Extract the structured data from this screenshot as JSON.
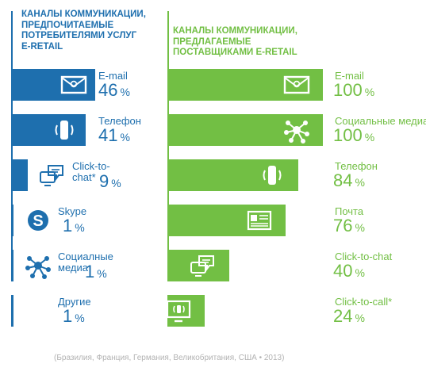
{
  "theme": {
    "left_color": "#1e6fae",
    "right_color": "#72bf44",
    "icon_fg": "#ffffff",
    "footnote_color": "#b3b3b3"
  },
  "chart_data": [
    {
      "type": "bar",
      "title": "КАНАЛЫ КОММУНИКАЦИИ, ПРЕДПОЧИТАЕМЫЕ ПОТРЕБИТЕЛЯМИ УСЛУГ E-RETAIL",
      "title_lines": [
        "КАНАЛЫ КОММУНИКАЦИИ,",
        "ПРЕДПОЧИТАЕМЫЕ",
        "ПОТРЕБИТЕЛЯМИ УСЛУГ",
        "E-RETAIL"
      ],
      "orientation": "horizontal",
      "color": "#1e6fae",
      "unit": "%",
      "categories": [
        "E-mail",
        "Телефон",
        "Click-to-chat*",
        "Skype",
        "Социалные медиа",
        "Другие"
      ],
      "values": [
        46,
        41,
        9,
        1,
        1,
        1
      ],
      "xlim": [
        0,
        46
      ],
      "items": [
        {
          "label_lines": [
            "E-mail"
          ],
          "value": 46,
          "icon": "envelope-icon"
        },
        {
          "label_lines": [
            "Телефон"
          ],
          "value": 41,
          "icon": "phone-icon"
        },
        {
          "label_lines": [
            "Click-to-",
            "chat*"
          ],
          "value": 9,
          "icon": "chat-icon"
        },
        {
          "label_lines": [
            "Skype"
          ],
          "value": 1,
          "icon": "skype-icon"
        },
        {
          "label_lines": [
            "Социалные",
            "медиа"
          ],
          "value": 1,
          "icon": "social-network-icon"
        },
        {
          "label_lines": [
            "Другие"
          ],
          "value": 1,
          "icon": ""
        }
      ]
    },
    {
      "type": "bar",
      "title": "КАНАЛЫ КОММУНИКАЦИИ, ПРЕДЛАГАЕМЫЕ ПОСТАВЩИКАМИ E-RETAIL",
      "title_lines": [
        "КАНАЛЫ КОММУНИКАЦИИ,",
        "ПРЕДЛАГАЕМЫЕ",
        "ПОСТАВЩИКАМИ E-RETAIL"
      ],
      "orientation": "horizontal",
      "color": "#72bf44",
      "unit": "%",
      "categories": [
        "E-mail",
        "Социальные медиа",
        "Телефон",
        "Почта",
        "Click-to-chat",
        "Click-to-call*"
      ],
      "values": [
        100,
        100,
        84,
        76,
        40,
        24
      ],
      "xlim": [
        0,
        100
      ],
      "items": [
        {
          "label_lines": [
            "E-mail"
          ],
          "value": 100,
          "icon": "envelope-icon"
        },
        {
          "label_lines": [
            "Социальные медиа"
          ],
          "value": 100,
          "icon": "social-network-icon"
        },
        {
          "label_lines": [
            "Телефон"
          ],
          "value": 84,
          "icon": "phone-icon"
        },
        {
          "label_lines": [
            "Почта"
          ],
          "value": 76,
          "icon": "mail-icon"
        },
        {
          "label_lines": [
            "Click-to-chat"
          ],
          "value": 40,
          "icon": "chat-icon"
        },
        {
          "label_lines": [
            "Click-to-call*"
          ],
          "value": 24,
          "icon": "click-to-call-icon"
        }
      ]
    }
  ],
  "footnote": "(Бразилия, Франция, Германия, Великобритания, США • 2013)"
}
